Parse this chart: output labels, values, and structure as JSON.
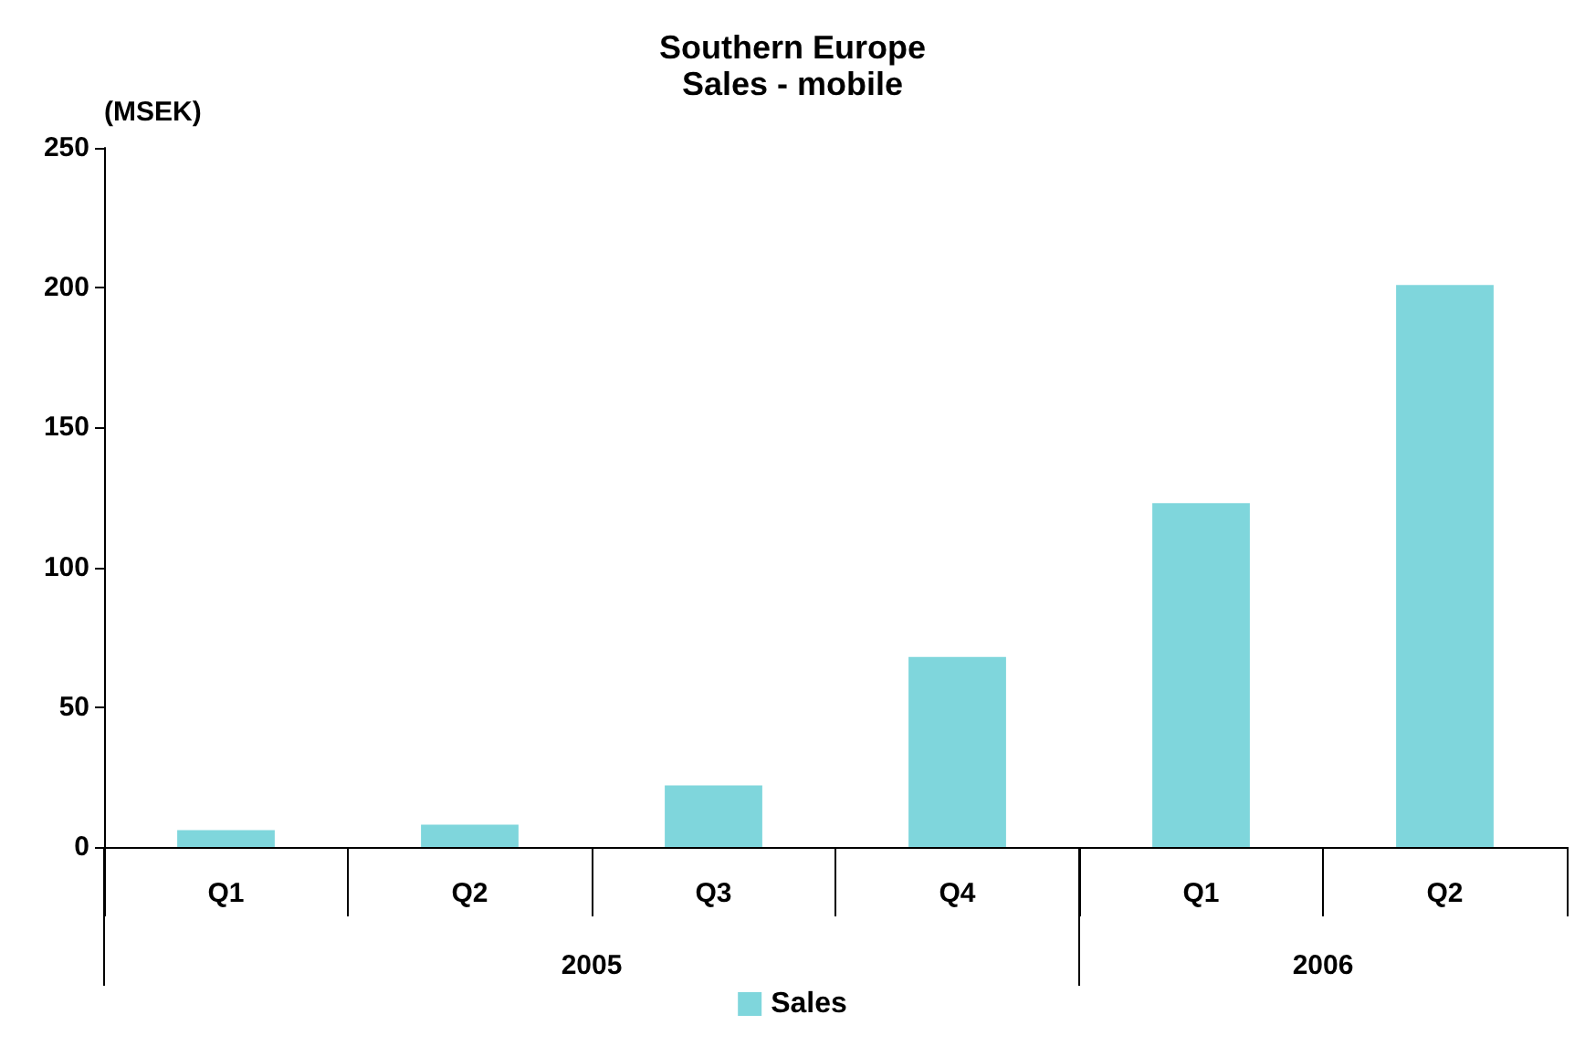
{
  "chart_data": {
    "type": "bar",
    "title": "Southern Europe",
    "subtitle": "Sales - mobile",
    "ylabel": "(MSEK)",
    "categories": [
      "Q1",
      "Q2",
      "Q3",
      "Q4",
      "Q1",
      "Q2"
    ],
    "series": [
      {
        "name": "Sales",
        "color": "#7fd6dc",
        "values": [
          6,
          8,
          22,
          68,
          123,
          201
        ]
      }
    ],
    "ylim": [
      0,
      250
    ],
    "yticks": [
      0,
      50,
      100,
      150,
      200,
      250
    ],
    "grid": false,
    "legend": "bottom",
    "annotations": [
      "2005",
      "2006"
    ]
  }
}
